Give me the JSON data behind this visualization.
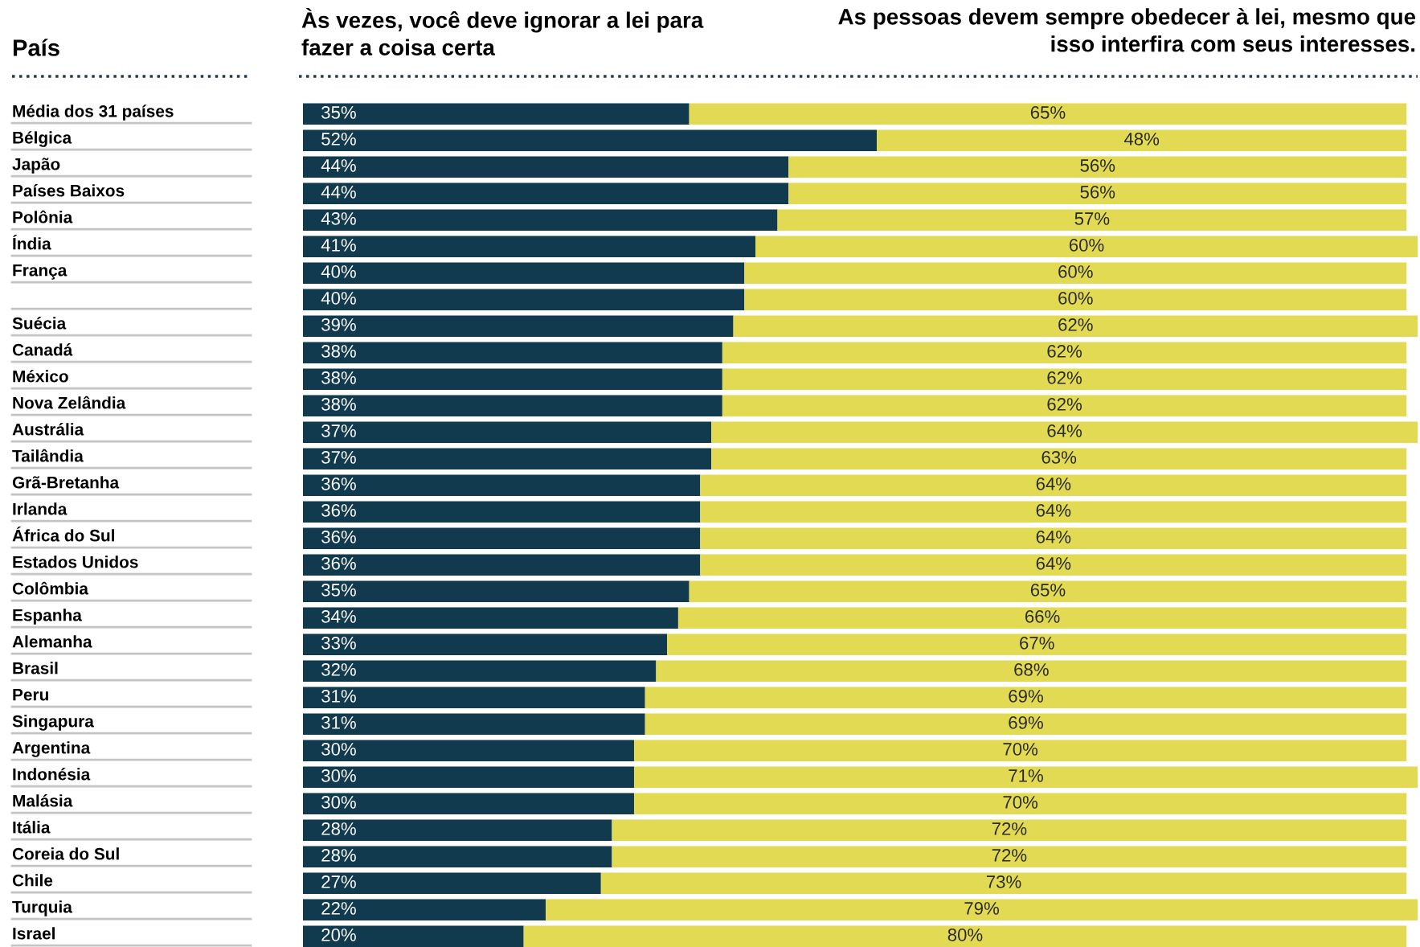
{
  "chart_data": {
    "type": "bar",
    "orientation": "horizontal",
    "stacked": true,
    "ylabel": "País",
    "categories": [
      "Média dos 31 países",
      "Bélgica",
      "Japão",
      "Países Baixos",
      "Polônia",
      "Índia",
      "França",
      null,
      "Suécia",
      "Canadá",
      "México",
      "Nova Zelândia",
      "Austrália",
      "Tailândia",
      "Grã-Bretanha",
      "Irlanda",
      "África do Sul",
      "Estados Unidos",
      "Colômbia",
      "Espanha",
      "Alemanha",
      "Brasil",
      "Peru",
      "Singapura",
      "Argentina",
      "Indonésia",
      "Malásia",
      "Itália",
      "Coreia do Sul",
      "Chile",
      "Turquia",
      "Israel"
    ],
    "series": [
      {
        "name": "Às vezes, você deve ignorar a lei para fazer a coisa certa",
        "color": "#123a4e",
        "values": [
          35,
          52,
          44,
          44,
          43,
          41,
          40,
          40,
          39,
          38,
          38,
          38,
          37,
          37,
          36,
          36,
          36,
          36,
          35,
          34,
          33,
          32,
          31,
          31,
          30,
          30,
          30,
          28,
          28,
          27,
          22,
          20
        ],
        "value_labels": [
          "35%",
          "52%",
          "44%",
          "44%",
          "43%",
          "41%",
          "40%",
          "40%",
          "39%",
          "38%",
          "38%",
          "38%",
          "37%",
          "37%",
          "36%",
          "36%",
          "36%",
          "36%",
          "35%",
          "34%",
          "33%",
          "32%",
          "31%",
          "31%",
          "30%",
          "30%",
          "30%",
          "28%",
          "28%",
          "27%",
          "22%",
          "20%"
        ]
      },
      {
        "name": "As pessoas devem sempre obedecer à lei, mesmo que isso interfira com seus interesses.",
        "color": "#e2da52",
        "values": [
          65,
          48,
          56,
          56,
          57,
          60,
          60,
          60,
          62,
          62,
          62,
          62,
          64,
          63,
          64,
          64,
          64,
          64,
          65,
          66,
          67,
          68,
          69,
          69,
          70,
          71,
          70,
          72,
          72,
          73,
          79,
          80
        ],
        "value_labels": [
          "65%",
          "48%",
          "56%",
          "56%",
          "57%",
          "60%",
          "60%",
          "60%",
          "62%",
          "62%",
          "62%",
          "62%",
          "64%",
          "63%",
          "64%",
          "64%",
          "64%",
          "64%",
          "65%",
          "66%",
          "67%",
          "68%",
          "69%",
          "69%",
          "70%",
          "71%",
          "70%",
          "72%",
          "72%",
          "73%",
          "79%",
          "80%"
        ]
      }
    ],
    "xlim": [
      0,
      101
    ],
    "tick_labels": "y"
  }
}
